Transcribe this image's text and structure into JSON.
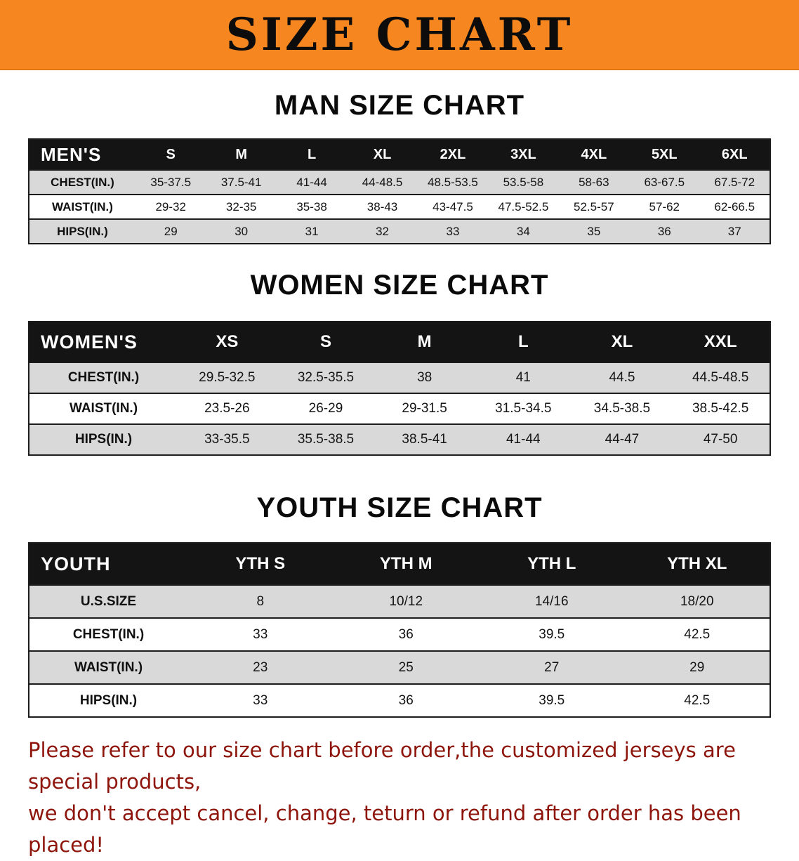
{
  "banner": {
    "title": "SIZE CHART",
    "bg_color": "#f6861f",
    "text_color": "#0c0c0c"
  },
  "colors": {
    "table_header_bg": "#141414",
    "table_stripe": "#d9d9d9",
    "note_red": "#8e150c"
  },
  "men": {
    "heading": "MAN SIZE CHART",
    "table": {
      "header": [
        "MEN'S",
        "S",
        "M",
        "L",
        "XL",
        "2XL",
        "3XL",
        "4XL",
        "5XL",
        "6XL"
      ],
      "rows": [
        [
          "CHEST(IN.)",
          "35-37.5",
          "37.5-41",
          "41-44",
          "44-48.5",
          "48.5-53.5",
          "53.5-58",
          "58-63",
          "63-67.5",
          "67.5-72"
        ],
        [
          "WAIST(IN.)",
          "29-32",
          "32-35",
          "35-38",
          "38-43",
          "43-47.5",
          "47.5-52.5",
          "52.5-57",
          "57-62",
          "62-66.5"
        ],
        [
          "HIPS(IN.)",
          "29",
          "30",
          "31",
          "32",
          "33",
          "34",
          "35",
          "36",
          "37"
        ]
      ]
    }
  },
  "women": {
    "heading": "WOMEN SIZE CHART",
    "table": {
      "header": [
        "WOMEN'S",
        "XS",
        "S",
        "M",
        "L",
        "XL",
        "XXL"
      ],
      "rows": [
        [
          "CHEST(IN.)",
          "29.5-32.5",
          "32.5-35.5",
          "38",
          "41",
          "44.5",
          "44.5-48.5"
        ],
        [
          "WAIST(IN.)",
          "23.5-26",
          "26-29",
          "29-31.5",
          "31.5-34.5",
          "34.5-38.5",
          "38.5-42.5"
        ],
        [
          "HIPS(IN.)",
          "33-35.5",
          "35.5-38.5",
          "38.5-41",
          "41-44",
          "44-47",
          "47-50"
        ]
      ]
    }
  },
  "youth": {
    "heading": "YOUTH SIZE CHART",
    "table": {
      "header": [
        "YOUTH",
        "YTH S",
        "YTH M",
        "YTH L",
        "YTH XL"
      ],
      "rows": [
        [
          "U.S.SIZE",
          "8",
          "10/12",
          "14/16",
          "18/20"
        ],
        [
          "CHEST(IN.)",
          "33",
          "36",
          "39.5",
          "42.5"
        ],
        [
          "WAIST(IN.)",
          "23",
          "25",
          "27",
          "29"
        ],
        [
          "HIPS(IN.)",
          "33",
          "36",
          "39.5",
          "42.5"
        ]
      ]
    }
  },
  "footer": {
    "line1": "Please refer to our size chart before order,the customized jerseys are special products,",
    "line2": "we don't accept cancel, change, teturn or refund after order has been placed!"
  }
}
